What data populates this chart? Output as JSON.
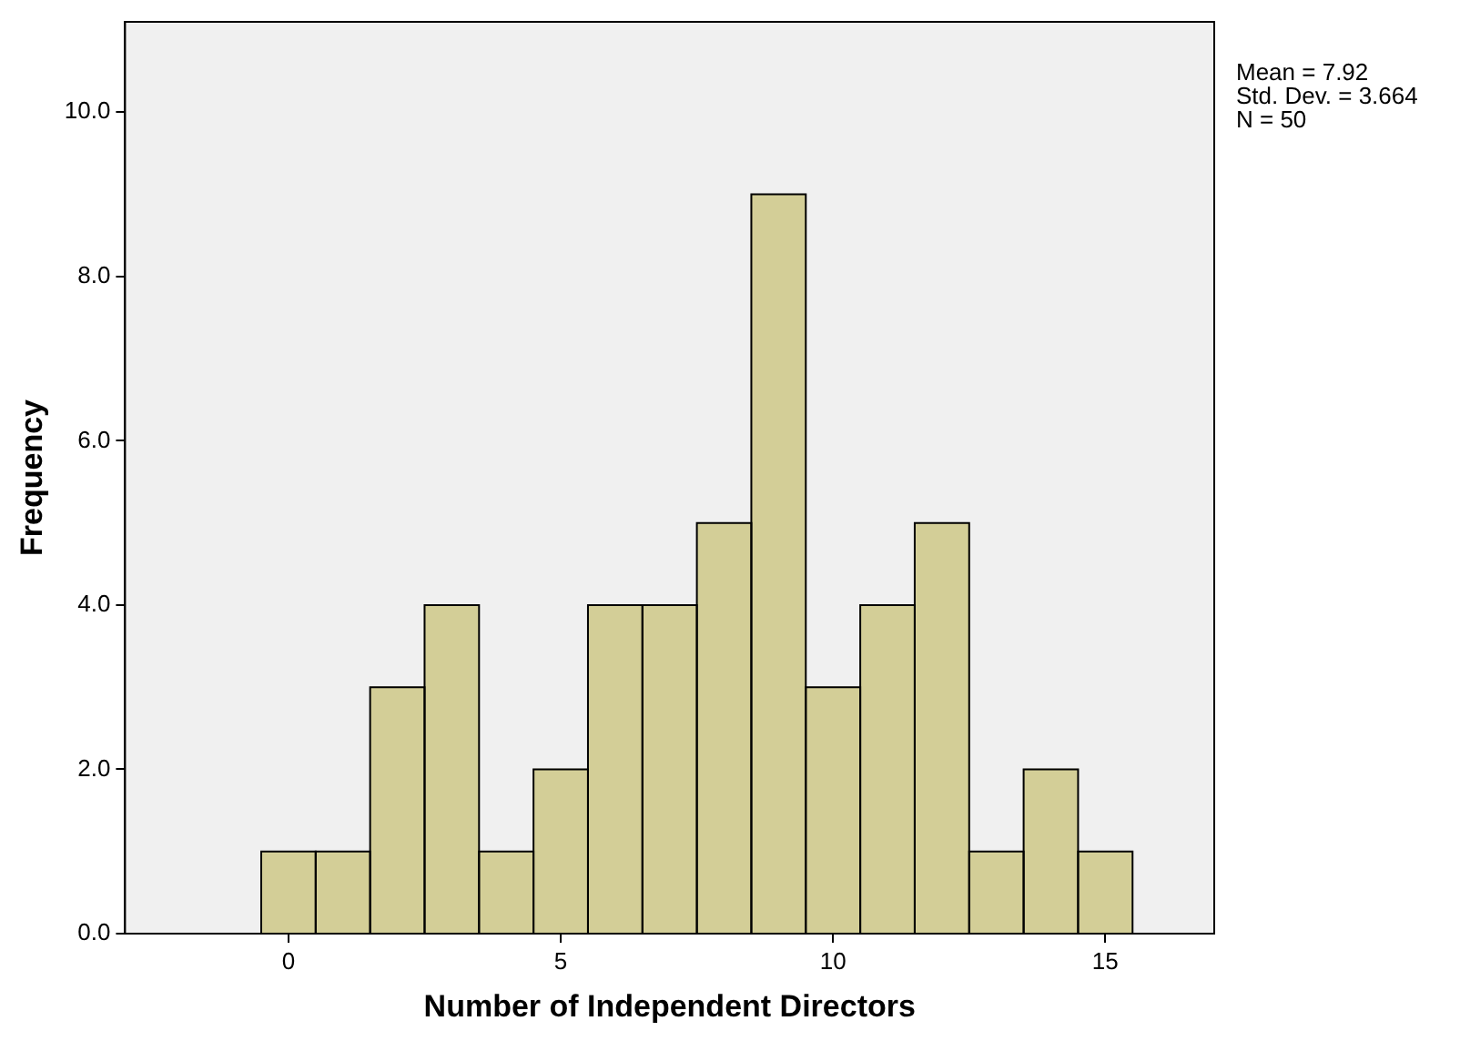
{
  "chart_data": {
    "type": "histogram",
    "xlabel": "Number of Independent Directors",
    "ylabel": "Frequency",
    "bins": [
      -0.5,
      0.5,
      1.5,
      2.5,
      3.5,
      4.5,
      5.5,
      6.5,
      7.5,
      8.5,
      9.5,
      10.5,
      11.5,
      12.5,
      13.5,
      14.5,
      15.5
    ],
    "values": [
      1,
      1,
      3,
      4,
      1,
      2,
      4,
      4,
      5,
      9,
      3,
      4,
      5,
      1,
      2,
      1
    ],
    "color": "#d3ce97",
    "xlim": [
      -3,
      17
    ],
    "xticks": [
      0,
      5,
      10,
      15
    ],
    "ylim": [
      0,
      11.1
    ],
    "yticks": [
      {
        "value": 0,
        "label": "0.0"
      },
      {
        "value": 2,
        "label": "2.0"
      },
      {
        "value": 4,
        "label": "4.0"
      },
      {
        "value": 6,
        "label": "6.0"
      },
      {
        "value": 8,
        "label": "8.0"
      },
      {
        "value": 10,
        "label": "10.0"
      }
    ],
    "grid": false,
    "legend": false,
    "annotations": [
      "Mean = 7.92",
      "Std. Dev. = 3.664",
      "N = 50"
    ]
  }
}
